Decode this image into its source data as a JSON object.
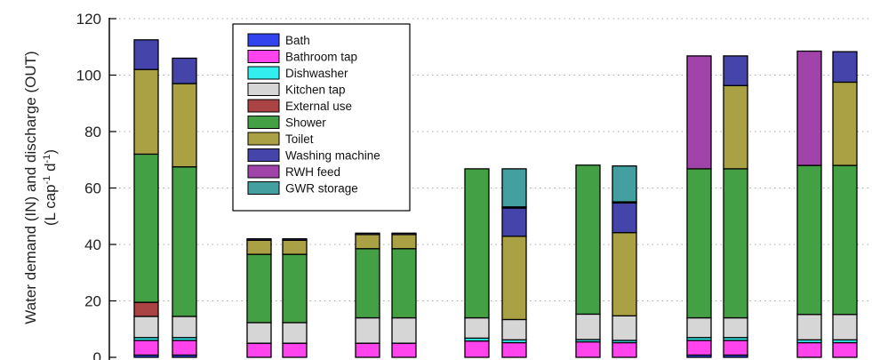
{
  "chart_data": {
    "type": "bar",
    "stacked": true,
    "ylabel_line1": "Water demand (IN) and discharge (OUT)",
    "ylabel_line2": "(L cap",
    "ylabel_sup1": "-1",
    "ylabel_mid": " d",
    "ylabel_sup2": "-1",
    "ylabel_end": ")",
    "ylim": [
      0,
      120
    ],
    "yticks": [
      "0",
      "20",
      "40",
      "60",
      "80",
      "100",
      "120"
    ],
    "grid": "horizontal-dotted",
    "legend_placement": "top-left",
    "legend": [
      {
        "name": "Bath",
        "color": "#3344ee"
      },
      {
        "name": "Bathroom tap",
        "color": "#ff44ee"
      },
      {
        "name": "Dishwasher",
        "color": "#33eeee"
      },
      {
        "name": "Kitchen tap",
        "color": "#d6d6d6"
      },
      {
        "name": "External use",
        "color": "#aa4444"
      },
      {
        "name": "Shower",
        "color": "#44a044"
      },
      {
        "name": "Toilet",
        "color": "#aaa044"
      },
      {
        "name": "Washing machine",
        "color": "#4444aa"
      },
      {
        "name": "RWH feed",
        "color": "#a044aa"
      },
      {
        "name": "GWR storage",
        "color": "#44a0a0"
      }
    ],
    "bars": [
      {
        "segments": [
          [
            "Bath",
            0.8
          ],
          [
            "Bathroom tap",
            5.2
          ],
          [
            "Dishwasher",
            1.0
          ],
          [
            "Kitchen tap",
            7.5
          ],
          [
            "External use",
            5.0
          ],
          [
            "Shower",
            52.5
          ],
          [
            "Toilet",
            30.0
          ],
          [
            "Washing machine",
            10.5
          ]
        ]
      },
      {
        "segments": [
          [
            "Bath",
            0.8
          ],
          [
            "Bathroom tap",
            5.2
          ],
          [
            "Dishwasher",
            1.0
          ],
          [
            "Kitchen tap",
            7.5
          ],
          [
            "Shower",
            53.0
          ],
          [
            "Toilet",
            29.5
          ],
          [
            "Washing machine",
            9.0
          ]
        ]
      },
      {
        "segments": [
          [
            "Bathroom tap",
            5.0
          ],
          [
            "Kitchen tap",
            7.3
          ],
          [
            "Shower",
            24.2
          ],
          [
            "Toilet",
            5.0
          ],
          [
            "Washing machine",
            0.5
          ]
        ]
      },
      {
        "segments": [
          [
            "Bathroom tap",
            5.0
          ],
          [
            "Kitchen tap",
            7.3
          ],
          [
            "Shower",
            24.2
          ],
          [
            "Toilet",
            5.0
          ],
          [
            "Washing machine",
            0.5
          ]
        ]
      },
      {
        "segments": [
          [
            "Bathroom tap",
            5.0
          ],
          [
            "Kitchen tap",
            9.0
          ],
          [
            "Shower",
            24.5
          ],
          [
            "Toilet",
            5.0
          ],
          [
            "Washing machine",
            0.5
          ]
        ]
      },
      {
        "segments": [
          [
            "Bathroom tap",
            5.0
          ],
          [
            "Kitchen tap",
            9.0
          ],
          [
            "Shower",
            24.5
          ],
          [
            "Toilet",
            5.0
          ],
          [
            "Washing machine",
            0.5
          ]
        ]
      },
      {
        "segments": [
          [
            "Bathroom tap",
            5.8
          ],
          [
            "Dishwasher",
            1.0
          ],
          [
            "Kitchen tap",
            7.2
          ],
          [
            "Shower",
            52.8
          ]
        ]
      },
      {
        "segments": [
          [
            "Bathroom tap",
            5.2
          ],
          [
            "Dishwasher",
            1.0
          ],
          [
            "Kitchen tap",
            7.2
          ],
          [
            "Toilet",
            29.5
          ],
          [
            "Washing machine",
            10.0
          ],
          [
            "External use",
            0.4
          ],
          [
            "GWR storage",
            13.5
          ]
        ]
      },
      {
        "segments": [
          [
            "Bathroom tap",
            5.5
          ],
          [
            "Dishwasher",
            0.8
          ],
          [
            "Kitchen tap",
            9.0
          ],
          [
            "Shower",
            52.8
          ]
        ]
      },
      {
        "segments": [
          [
            "Bathroom tap",
            5.2
          ],
          [
            "Dishwasher",
            0.8
          ],
          [
            "Kitchen tap",
            8.7
          ],
          [
            "Toilet",
            29.5
          ],
          [
            "Washing machine",
            10.5
          ],
          [
            "External use",
            0.4
          ],
          [
            "GWR storage",
            12.7
          ]
        ]
      },
      {
        "segments": [
          [
            "Bath",
            0.8
          ],
          [
            "Bathroom tap",
            5.2
          ],
          [
            "Dishwasher",
            1.0
          ],
          [
            "Kitchen tap",
            7.0
          ],
          [
            "Shower",
            52.8
          ],
          [
            "RWH feed",
            40.0
          ]
        ]
      },
      {
        "segments": [
          [
            "Bath",
            0.8
          ],
          [
            "Bathroom tap",
            5.2
          ],
          [
            "Dishwasher",
            1.0
          ],
          [
            "Kitchen tap",
            7.0
          ],
          [
            "Shower",
            52.8
          ],
          [
            "Toilet",
            29.5
          ],
          [
            "Washing machine",
            10.5
          ]
        ]
      },
      {
        "segments": [
          [
            "Bathroom tap",
            5.2
          ],
          [
            "Dishwasher",
            1.0
          ],
          [
            "Kitchen tap",
            9.0
          ],
          [
            "Shower",
            52.8
          ],
          [
            "RWH feed",
            40.5
          ]
        ]
      },
      {
        "segments": [
          [
            "Bathroom tap",
            5.2
          ],
          [
            "Dishwasher",
            1.0
          ],
          [
            "Kitchen tap",
            9.0
          ],
          [
            "Shower",
            52.8
          ],
          [
            "Toilet",
            29.5
          ],
          [
            "Washing machine",
            10.8
          ]
        ]
      }
    ]
  }
}
